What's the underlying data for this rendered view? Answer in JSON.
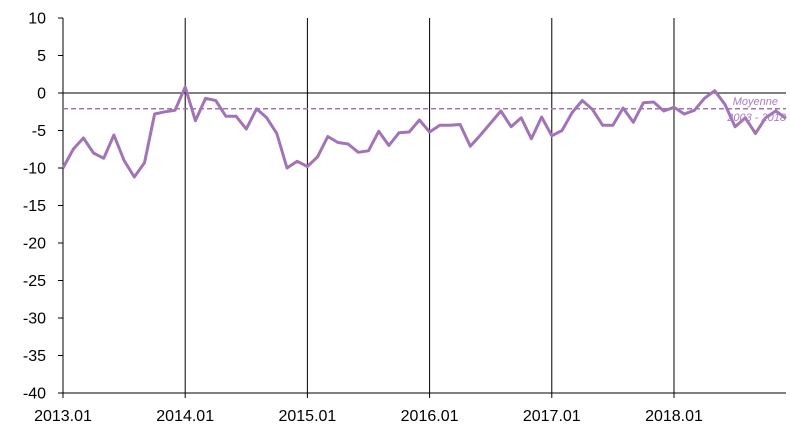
{
  "chart_data": {
    "type": "line",
    "title": "",
    "xlabel": "",
    "ylabel": "",
    "ylim": [
      -40,
      10
    ],
    "yticks": [
      10,
      5,
      0,
      -5,
      -10,
      -15,
      -20,
      -25,
      -30,
      -35,
      -40
    ],
    "xlim": [
      0,
      71
    ],
    "xticks": [
      {
        "label": "2013.01",
        "index": 0
      },
      {
        "label": "2014.01",
        "index": 12
      },
      {
        "label": "2015.01",
        "index": 24
      },
      {
        "label": "2016.01",
        "index": 36
      },
      {
        "label": "2017.01",
        "index": 48
      },
      {
        "label": "2018.01",
        "index": 60
      }
    ],
    "year_gridlines": [
      12,
      24,
      36,
      48,
      60
    ],
    "grid": false,
    "colors": {
      "series": "#a074b6",
      "average": "#a074b6",
      "axis": "#000000"
    },
    "series": [
      {
        "values": [
          -10.0,
          -7.5,
          -6.0,
          -8.0,
          -8.7,
          -5.6,
          -9.0,
          -11.2,
          -9.3,
          -2.8,
          -2.5,
          -2.3,
          0.8,
          -3.7,
          -0.7,
          -1.0,
          -3.1,
          -3.1,
          -4.8,
          -2.1,
          -3.3,
          -5.4,
          -10.0,
          -9.1,
          -9.8,
          -8.5,
          -5.8,
          -6.6,
          -6.8,
          -7.9,
          -7.7,
          -5.1,
          -7.0,
          -5.3,
          -5.2,
          -3.6,
          -5.2,
          -4.3,
          -4.3,
          -4.2,
          -7.1,
          -5.6,
          -4.0,
          -2.4,
          -4.5,
          -3.3,
          -6.1,
          -3.2,
          -5.7,
          -5.0,
          -2.6,
          -1.0,
          -2.2,
          -4.3,
          -4.3,
          -2.0,
          -3.9,
          -1.3,
          -1.2,
          -2.4,
          -1.9,
          -2.8,
          -2.3,
          -0.7,
          0.3,
          -1.5,
          -4.5,
          -3.3,
          -5.4,
          -3.3,
          -2.4,
          -3.4
        ]
      },
      {
        "type": "reference",
        "style": "dashed",
        "value": -2.1,
        "label_line1": "Moyenne",
        "label_line2": "2003 - 2018"
      }
    ]
  }
}
